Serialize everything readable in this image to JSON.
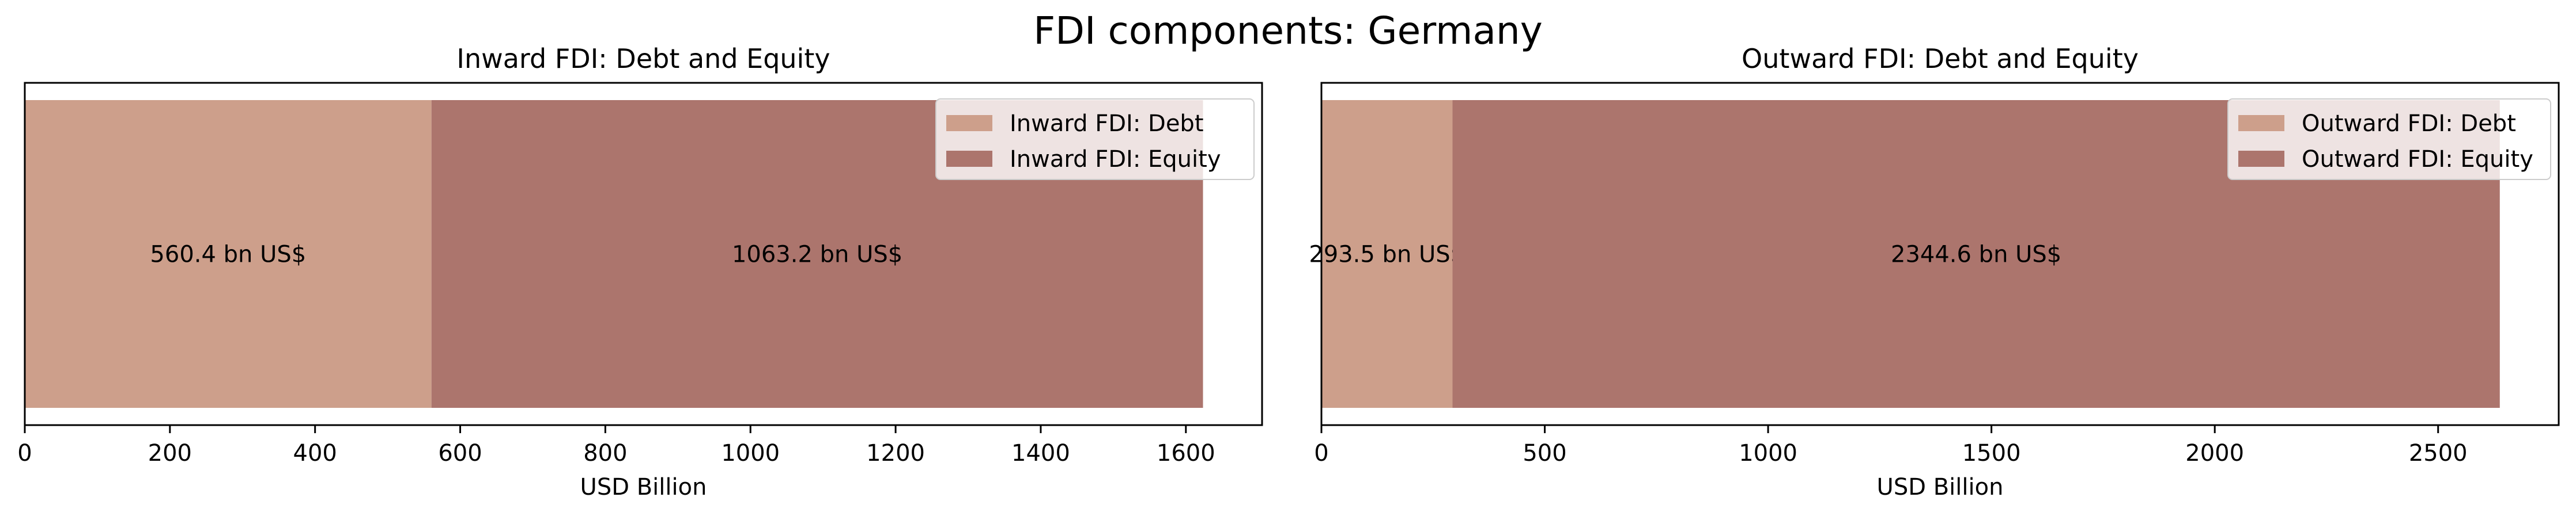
{
  "figure": {
    "suptitle": "FDI components: Germany"
  },
  "colors": {
    "debt": "#cd9f8b",
    "equity": "#ac756d",
    "frame": "#000000"
  },
  "chart_data": [
    {
      "type": "bar",
      "orientation": "horizontal-stacked",
      "title": "Inward FDI: Debt and Equity",
      "xlabel": "USD Billion",
      "ylabel": "",
      "xlim": [
        0,
        1705
      ],
      "xticks": [
        0,
        200,
        400,
        600,
        800,
        1000,
        1200,
        1400,
        1600
      ],
      "grid": false,
      "legend_position": "top-right",
      "series": [
        {
          "name": "Inward FDI: Debt",
          "value": 560.4,
          "label": "560.4 bn US$",
          "color_key": "debt"
        },
        {
          "name": "Inward FDI: Equity",
          "value": 1063.2,
          "label": "1063.2 bn US$",
          "color_key": "equity"
        }
      ]
    },
    {
      "type": "bar",
      "orientation": "horizontal-stacked",
      "title": "Outward FDI: Debt and Equity",
      "xlabel": "USD Billion",
      "ylabel": "",
      "xlim": [
        0,
        2770
      ],
      "xticks": [
        0,
        500,
        1000,
        1500,
        2000,
        2500
      ],
      "grid": false,
      "legend_position": "top-right",
      "series": [
        {
          "name": "Outward FDI: Debt",
          "value": 293.5,
          "label": "293.5 bn US$",
          "color_key": "debt"
        },
        {
          "name": "Outward FDI: Equity",
          "value": 2344.6,
          "label": "2344.6 bn US$",
          "color_key": "equity"
        }
      ]
    }
  ]
}
